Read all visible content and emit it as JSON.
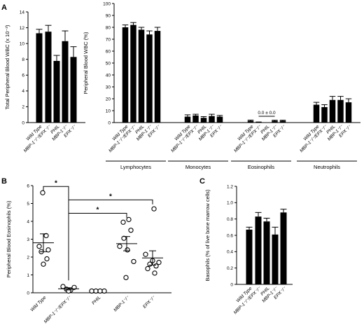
{
  "panels": {
    "a": "A",
    "b": "B",
    "c": "C"
  },
  "chart_data": [
    {
      "id": "A-left",
      "type": "bar",
      "ylabel": "Total Peripheral Blood WBC (x 10⁻³)",
      "ylim": [
        0,
        14
      ],
      "yticks": [
        0,
        2,
        4,
        6,
        8,
        10,
        12,
        14
      ],
      "categories": [
        "Wild Type",
        "MBP-1⁻/⁻/EPX⁻/⁻",
        "PHIL",
        "MBP-1⁻/⁻",
        "EPX⁻/⁻"
      ],
      "values": [
        11.3,
        11.5,
        7.8,
        10.3,
        8.3
      ],
      "errors": [
        0.5,
        0.8,
        0.7,
        1.3,
        1.3
      ]
    },
    {
      "id": "A-right",
      "type": "bar",
      "ylabel": "Peripheral Blood WBC (%)",
      "ylim": [
        0,
        100
      ],
      "yticks": [
        0,
        10,
        20,
        30,
        40,
        50,
        60,
        70,
        80,
        90,
        100
      ],
      "categories": [
        "Wild Type",
        "MBP-1⁻/⁻/EPX⁻/⁻",
        "PHIL",
        "MBP-1⁻/⁻",
        "EPX⁻/⁻"
      ],
      "annotation": "0.0 ± 0.0",
      "groups": [
        {
          "name": "Lymphocytes",
          "values": [
            80,
            82,
            78,
            74,
            77
          ],
          "errors": [
            2,
            2,
            2,
            3,
            3
          ]
        },
        {
          "name": "Monocytes",
          "values": [
            5,
            6,
            4,
            5.5,
            5
          ],
          "errors": [
            1.5,
            1,
            1,
            1.5,
            1
          ]
        },
        {
          "name": "Eosinophils",
          "values": [
            1.5,
            0.3,
            0,
            1.5,
            1.5
          ],
          "errors": [
            0.6,
            0.2,
            0,
            0.5,
            0.5
          ]
        },
        {
          "name": "Neutrophils",
          "values": [
            15,
            13,
            19,
            19,
            17
          ],
          "errors": [
            2,
            2,
            3,
            3,
            3
          ]
        }
      ]
    },
    {
      "id": "B",
      "type": "scatter",
      "ylabel": "Peripheral Blood Eosinophils (%)",
      "ylim": [
        0,
        6
      ],
      "yticks": [
        0,
        1,
        2,
        3,
        4,
        5,
        6
      ],
      "categories": [
        "Wild Type",
        "MBP-1⁻/⁻/EPX⁻/⁻",
        "PHIL",
        "MBP-1⁻/⁻",
        "EPX⁻/⁻"
      ],
      "points": [
        [
          5.6,
          3.2,
          2.6,
          2.4,
          2.3,
          1.9,
          1.6
        ],
        [
          0.35,
          0.3,
          0.2,
          0.15,
          0.1
        ],
        [
          0,
          0,
          0,
          0
        ],
        [
          4.1,
          3.95,
          3.5,
          3.05,
          2.6,
          2.4,
          1.75,
          0.85
        ],
        [
          4.7,
          2.15,
          1.8,
          1.7,
          1.6,
          1.5,
          1.35,
          1.1
        ]
      ],
      "means": [
        2.8,
        0.22,
        0,
        2.75,
        1.95
      ],
      "sem": [
        0.5,
        0.06,
        0,
        0.4,
        0.4
      ],
      "significance": [
        "*",
        "*",
        "*"
      ]
    },
    {
      "id": "C",
      "type": "bar",
      "ylabel": "Basophils (% of live bone marrow cells)",
      "ylim": [
        0,
        1.2
      ],
      "yticks": [
        0,
        0.2,
        0.4,
        0.6,
        0.8,
        1.0,
        1.2
      ],
      "ytick_labels": [
        "0",
        "0.2",
        "0.4",
        "0.6",
        "0.8",
        "1.0",
        "1.2"
      ],
      "categories": [
        "Wild Type",
        "MBP-1⁻/⁻/EPX⁻/⁻",
        "PHIL",
        "MBP-1⁻/⁻",
        "EPX⁻/⁻"
      ],
      "values": [
        0.67,
        0.83,
        0.77,
        0.61,
        0.88
      ],
      "errors": [
        0.03,
        0.05,
        0.04,
        0.09,
        0.04
      ]
    }
  ]
}
